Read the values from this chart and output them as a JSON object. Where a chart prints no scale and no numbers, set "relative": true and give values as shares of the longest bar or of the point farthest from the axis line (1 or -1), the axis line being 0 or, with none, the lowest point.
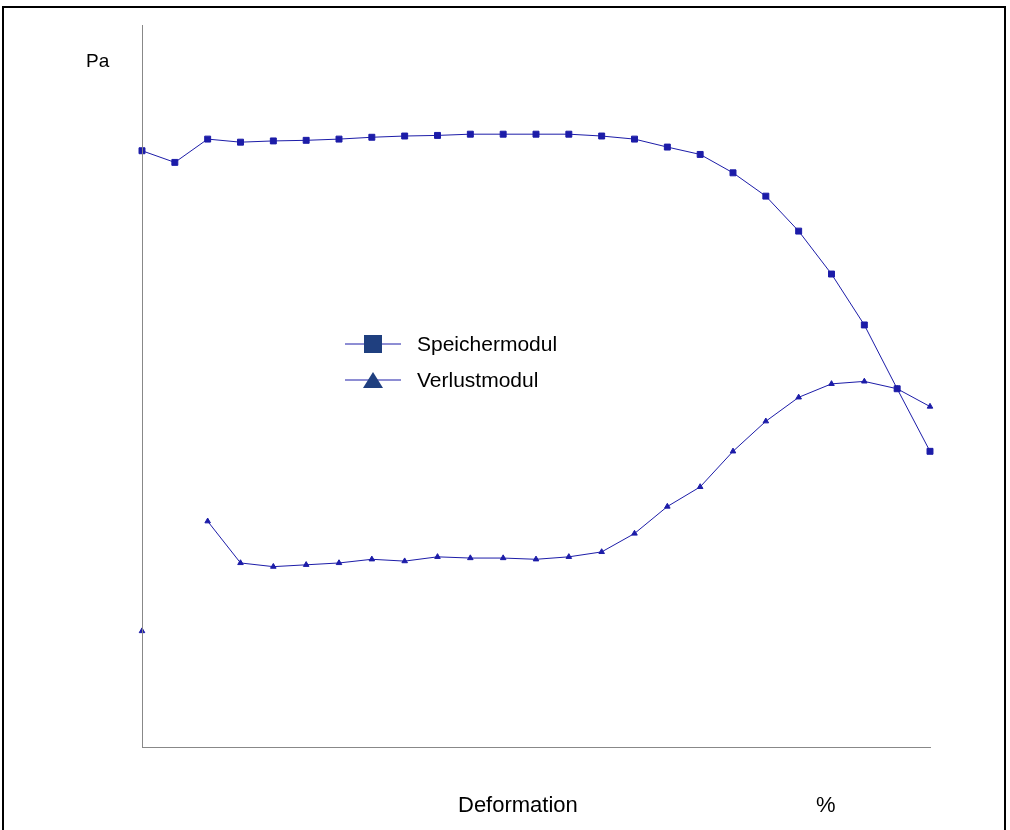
{
  "chart_data": {
    "type": "line",
    "xlabel": "Deformation",
    "ylabel": "Pa",
    "annotations": [
      "%"
    ],
    "relative": true,
    "legend": "center",
    "grid": false,
    "categories": [
      null,
      null,
      null,
      null,
      null,
      null,
      null,
      null,
      null,
      null,
      null,
      null,
      null,
      null,
      null,
      null,
      null,
      null,
      null,
      null,
      null,
      null,
      null,
      null,
      null
    ],
    "series": [
      {
        "name": "Speichermodul",
        "color": "#1c1ca8",
        "marker": "square",
        "values": [
          0.973,
          0.954,
          0.992,
          0.987,
          0.989,
          0.99,
          0.992,
          0.995,
          0.997,
          0.998,
          1,
          1,
          1,
          1,
          0.997,
          0.992,
          0.979,
          0.967,
          0.937,
          0.899,
          0.842,
          0.772,
          0.689,
          0.585,
          0.483
        ]
      },
      {
        "name": "Verlustmodul",
        "color": "#1c1ca8",
        "marker": "triangle",
        "values": [
          0.19,
          null,
          0.369,
          0.301,
          0.295,
          0.298,
          0.301,
          0.307,
          0.304,
          0.311,
          0.309,
          0.309,
          0.307,
          0.311,
          0.319,
          0.349,
          0.393,
          0.425,
          0.483,
          0.532,
          0.571,
          0.593,
          0.597,
          0.585,
          0.556
        ]
      }
    ]
  }
}
